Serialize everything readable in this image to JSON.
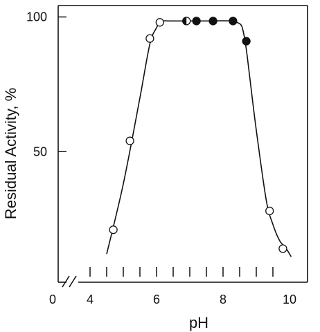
{
  "chart_data": {
    "type": "scatter",
    "title": "",
    "xlabel": "pH",
    "ylabel": "Residual Activity, %",
    "xlim": [
      4,
      10
    ],
    "ylim": [
      0,
      100
    ],
    "x_break": true,
    "x_tick_labels": [
      "0",
      "4",
      "6",
      "8",
      "10"
    ],
    "x_minor_ticks": [
      4.5,
      5,
      5.5,
      6.5,
      7,
      7.5,
      8.5,
      9,
      9.5
    ],
    "y_tick_labels": [
      "100",
      "50"
    ],
    "y_ticks": [
      100,
      50
    ],
    "grid": false,
    "series": [
      {
        "marker": "open-circle",
        "x": [
          4.7,
          5.2,
          5.8,
          6.1,
          9.4,
          9.8
        ],
        "y": [
          21,
          54,
          92,
          98,
          28,
          14
        ]
      },
      {
        "marker": "half-filled-circle",
        "x": [
          6.9
        ],
        "y": [
          98.5
        ]
      },
      {
        "marker": "filled-circle",
        "x": [
          7.2,
          7.7,
          8.3,
          8.7
        ],
        "y": [
          98.5,
          98.5,
          98.5,
          91
        ]
      }
    ],
    "curve": {
      "x": [
        4.5,
        5.0,
        5.5,
        5.8,
        6.0,
        6.1,
        6.2,
        6.4,
        7.0,
        7.6,
        8.2,
        8.5,
        8.6,
        8.7,
        8.8,
        9.0,
        9.3,
        9.5,
        9.7,
        9.9,
        10.05
      ],
      "y": [
        12,
        38,
        70,
        90,
        96,
        98,
        98.5,
        98.5,
        98.5,
        98.5,
        98.5,
        97.5,
        95,
        88,
        78,
        58,
        32,
        23,
        17,
        14,
        11
      ]
    }
  }
}
